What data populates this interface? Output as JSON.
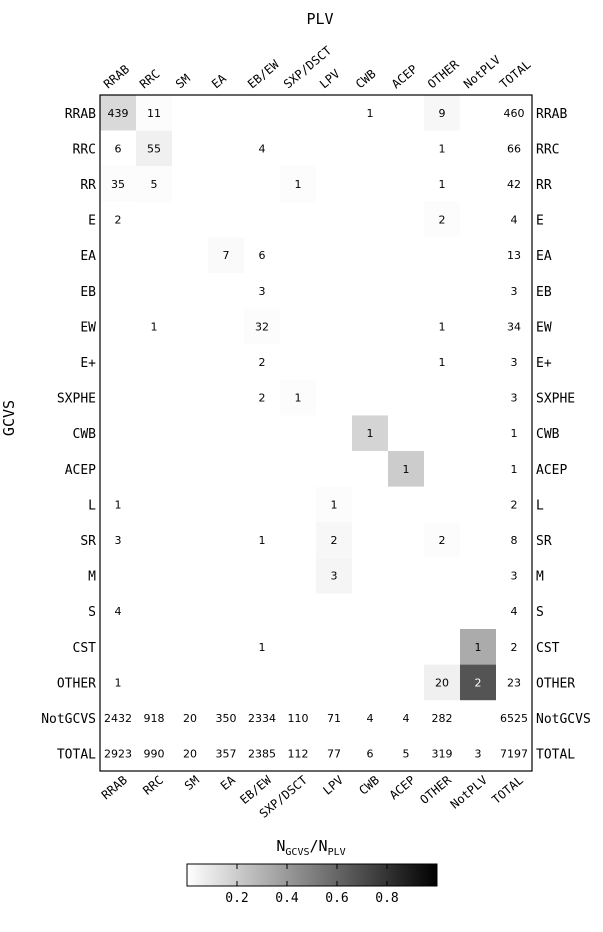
{
  "chart_data": {
    "type": "heatmap",
    "title": "PLV",
    "ylabel": "GCVS",
    "colorbar": {
      "label_main": "N",
      "label_sub1": "GCVS",
      "label_sep": "/N",
      "label_sub2": "PLV",
      "ticks": [
        "0.2",
        "0.4",
        "0.6",
        "0.8"
      ],
      "range": [
        0,
        1
      ],
      "colormap": "greys"
    },
    "columns": [
      "RRAB",
      "RRC",
      "SM",
      "EA",
      "EB/EW",
      "SXP/DSCT",
      "LPV",
      "CWB",
      "ACEP",
      "OTHER",
      "NotPLV",
      "TOTAL"
    ],
    "rows": [
      "RRAB",
      "RRC",
      "RR",
      "E",
      "EA",
      "EB",
      "EW",
      "E+",
      "SXPHE",
      "CWB",
      "ACEP",
      "L",
      "SR",
      "M",
      "S",
      "CST",
      "OTHER",
      "NotGCVS",
      "TOTAL"
    ],
    "cells": [
      {
        "r": 0,
        "c": 0,
        "v": "439",
        "f": 0.15
      },
      {
        "r": 0,
        "c": 1,
        "v": "11",
        "f": 0.01
      },
      {
        "r": 0,
        "c": 7,
        "v": "1",
        "f": 0.0
      },
      {
        "r": 0,
        "c": 9,
        "v": "9",
        "f": 0.03
      },
      {
        "r": 1,
        "c": 0,
        "v": "6",
        "f": 0.0
      },
      {
        "r": 1,
        "c": 1,
        "v": "55",
        "f": 0.06
      },
      {
        "r": 1,
        "c": 4,
        "v": "4",
        "f": 0.0
      },
      {
        "r": 1,
        "c": 9,
        "v": "1",
        "f": 0.0
      },
      {
        "r": 2,
        "c": 0,
        "v": "35",
        "f": 0.01
      },
      {
        "r": 2,
        "c": 1,
        "v": "5",
        "f": 0.01
      },
      {
        "r": 2,
        "c": 5,
        "v": "1",
        "f": 0.01
      },
      {
        "r": 2,
        "c": 9,
        "v": "1",
        "f": 0.0
      },
      {
        "r": 3,
        "c": 0,
        "v": "2",
        "f": 0.0
      },
      {
        "r": 3,
        "c": 9,
        "v": "2",
        "f": 0.01
      },
      {
        "r": 4,
        "c": 3,
        "v": "7",
        "f": 0.02
      },
      {
        "r": 4,
        "c": 4,
        "v": "6",
        "f": 0.0
      },
      {
        "r": 5,
        "c": 4,
        "v": "3",
        "f": 0.0
      },
      {
        "r": 6,
        "c": 1,
        "v": "1",
        "f": 0.0
      },
      {
        "r": 6,
        "c": 4,
        "v": "32",
        "f": 0.01
      },
      {
        "r": 6,
        "c": 9,
        "v": "1",
        "f": 0.0
      },
      {
        "r": 7,
        "c": 4,
        "v": "2",
        "f": 0.0
      },
      {
        "r": 7,
        "c": 9,
        "v": "1",
        "f": 0.0
      },
      {
        "r": 8,
        "c": 4,
        "v": "2",
        "f": 0.0
      },
      {
        "r": 8,
        "c": 5,
        "v": "1",
        "f": 0.01
      },
      {
        "r": 9,
        "c": 7,
        "v": "1",
        "f": 0.17
      },
      {
        "r": 10,
        "c": 8,
        "v": "1",
        "f": 0.2
      },
      {
        "r": 11,
        "c": 0,
        "v": "1",
        "f": 0.0
      },
      {
        "r": 11,
        "c": 6,
        "v": "1",
        "f": 0.01
      },
      {
        "r": 12,
        "c": 0,
        "v": "3",
        "f": 0.0
      },
      {
        "r": 12,
        "c": 4,
        "v": "1",
        "f": 0.0
      },
      {
        "r": 12,
        "c": 6,
        "v": "2",
        "f": 0.03
      },
      {
        "r": 12,
        "c": 9,
        "v": "2",
        "f": 0.01
      },
      {
        "r": 13,
        "c": 6,
        "v": "3",
        "f": 0.04
      },
      {
        "r": 14,
        "c": 0,
        "v": "4",
        "f": 0.0
      },
      {
        "r": 15,
        "c": 4,
        "v": "1",
        "f": 0.0
      },
      {
        "r": 15,
        "c": 10,
        "v": "1",
        "f": 0.33
      },
      {
        "r": 15,
        "c": 11,
        "v": "2",
        "f": null
      },
      {
        "r": 16,
        "c": 0,
        "v": "1",
        "f": 0.0
      },
      {
        "r": 16,
        "c": 9,
        "v": "20",
        "f": 0.06
      },
      {
        "r": 16,
        "c": 10,
        "v": "2",
        "f": 0.67
      },
      {
        "r": 16,
        "c": 11,
        "v": "23",
        "f": null
      },
      {
        "r": 0,
        "c": 11,
        "v": "460",
        "f": null
      },
      {
        "r": 1,
        "c": 11,
        "v": "66",
        "f": null
      },
      {
        "r": 2,
        "c": 11,
        "v": "42",
        "f": null
      },
      {
        "r": 3,
        "c": 11,
        "v": "4",
        "f": null
      },
      {
        "r": 4,
        "c": 11,
        "v": "13",
        "f": null
      },
      {
        "r": 5,
        "c": 11,
        "v": "3",
        "f": null
      },
      {
        "r": 6,
        "c": 11,
        "v": "34",
        "f": null
      },
      {
        "r": 7,
        "c": 11,
        "v": "3",
        "f": null
      },
      {
        "r": 8,
        "c": 11,
        "v": "3",
        "f": null
      },
      {
        "r": 9,
        "c": 11,
        "v": "1",
        "f": null
      },
      {
        "r": 10,
        "c": 11,
        "v": "1",
        "f": null
      },
      {
        "r": 11,
        "c": 11,
        "v": "2",
        "f": null
      },
      {
        "r": 12,
        "c": 11,
        "v": "8",
        "f": null
      },
      {
        "r": 13,
        "c": 11,
        "v": "3",
        "f": null
      },
      {
        "r": 14,
        "c": 11,
        "v": "4",
        "f": null
      },
      {
        "r": 17,
        "c": 0,
        "v": "2432",
        "f": null
      },
      {
        "r": 17,
        "c": 1,
        "v": "918",
        "f": null
      },
      {
        "r": 17,
        "c": 2,
        "v": "20",
        "f": null
      },
      {
        "r": 17,
        "c": 3,
        "v": "350",
        "f": null
      },
      {
        "r": 17,
        "c": 4,
        "v": "2334",
        "f": null
      },
      {
        "r": 17,
        "c": 5,
        "v": "110",
        "f": null
      },
      {
        "r": 17,
        "c": 6,
        "v": "71",
        "f": null
      },
      {
        "r": 17,
        "c": 7,
        "v": "4",
        "f": null
      },
      {
        "r": 17,
        "c": 8,
        "v": "4",
        "f": null
      },
      {
        "r": 17,
        "c": 9,
        "v": "282",
        "f": null
      },
      {
        "r": 17,
        "c": 11,
        "v": "6525",
        "f": null
      },
      {
        "r": 18,
        "c": 0,
        "v": "2923",
        "f": null
      },
      {
        "r": 18,
        "c": 1,
        "v": "990",
        "f": null
      },
      {
        "r": 18,
        "c": 2,
        "v": "20",
        "f": null
      },
      {
        "r": 18,
        "c": 3,
        "v": "357",
        "f": null
      },
      {
        "r": 18,
        "c": 4,
        "v": "2385",
        "f": null
      },
      {
        "r": 18,
        "c": 5,
        "v": "112",
        "f": null
      },
      {
        "r": 18,
        "c": 6,
        "v": "77",
        "f": null
      },
      {
        "r": 18,
        "c": 7,
        "v": "6",
        "f": null
      },
      {
        "r": 18,
        "c": 8,
        "v": "5",
        "f": null
      },
      {
        "r": 18,
        "c": 9,
        "v": "319",
        "f": null
      },
      {
        "r": 18,
        "c": 10,
        "v": "3",
        "f": null
      },
      {
        "r": 18,
        "c": 11,
        "v": "7197",
        "f": null
      }
    ]
  }
}
